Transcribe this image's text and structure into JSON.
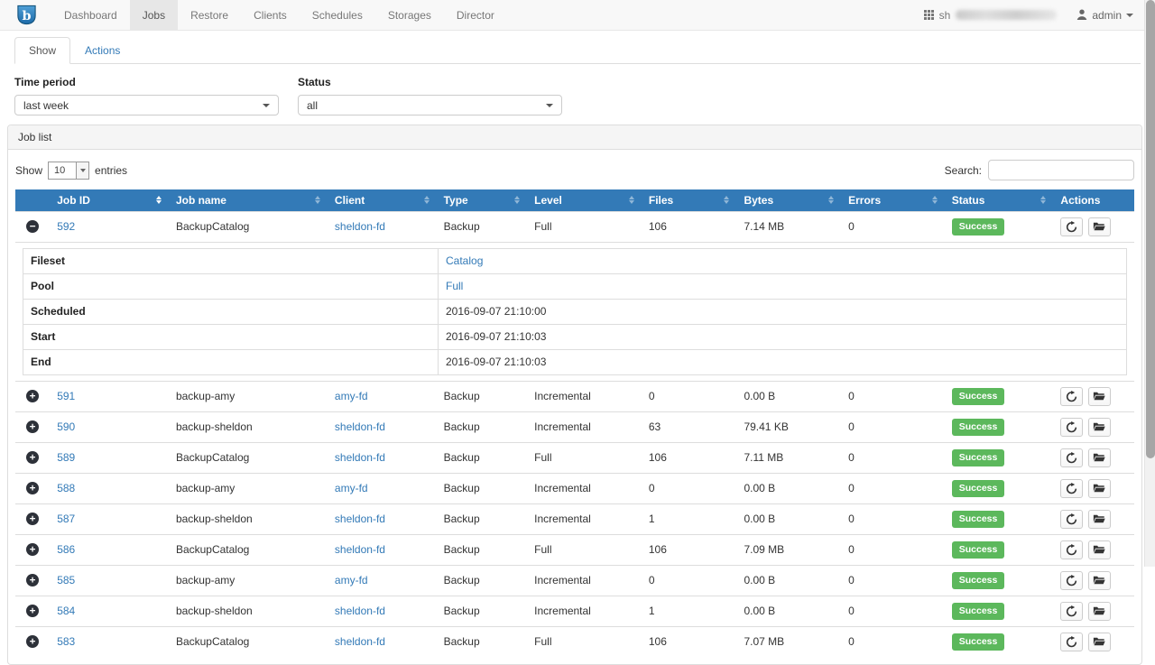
{
  "navbar": {
    "brand": "Bareos",
    "items": [
      {
        "label": "Dashboard",
        "active": false
      },
      {
        "label": "Jobs",
        "active": true
      },
      {
        "label": "Restore",
        "active": false
      },
      {
        "label": "Clients",
        "active": false
      },
      {
        "label": "Schedules",
        "active": false
      },
      {
        "label": "Storages",
        "active": false
      },
      {
        "label": "Director",
        "active": false
      }
    ],
    "host_prefix": "sh",
    "user_label": "admin"
  },
  "tabs": {
    "show": "Show",
    "actions": "Actions"
  },
  "filters": {
    "time_period_label": "Time period",
    "time_period_value": "last week",
    "status_label": "Status",
    "status_value": "all"
  },
  "job_list": {
    "panel_title": "Job list",
    "show_label": "Show",
    "entries_per_page": "10",
    "entries_label": "entries",
    "search_label": "Search:",
    "search_value": ""
  },
  "table": {
    "columns": [
      "Job ID",
      "Job name",
      "Client",
      "Type",
      "Level",
      "Files",
      "Bytes",
      "Errors",
      "Status",
      "Actions"
    ],
    "sorted_column": "Job ID",
    "rows": [
      {
        "id": "592",
        "name": "BackupCatalog",
        "client": "sheldon-fd",
        "type": "Backup",
        "level": "Full",
        "files": "106",
        "bytes": "7.14 MB",
        "errors": "0",
        "status": "Success",
        "expanded": true
      },
      {
        "id": "591",
        "name": "backup-amy",
        "client": "amy-fd",
        "type": "Backup",
        "level": "Incremental",
        "files": "0",
        "bytes": "0.00 B",
        "errors": "0",
        "status": "Success",
        "expanded": false
      },
      {
        "id": "590",
        "name": "backup-sheldon",
        "client": "sheldon-fd",
        "type": "Backup",
        "level": "Incremental",
        "files": "63",
        "bytes": "79.41 KB",
        "errors": "0",
        "status": "Success",
        "expanded": false
      },
      {
        "id": "589",
        "name": "BackupCatalog",
        "client": "sheldon-fd",
        "type": "Backup",
        "level": "Full",
        "files": "106",
        "bytes": "7.11 MB",
        "errors": "0",
        "status": "Success",
        "expanded": false
      },
      {
        "id": "588",
        "name": "backup-amy",
        "client": "amy-fd",
        "type": "Backup",
        "level": "Incremental",
        "files": "0",
        "bytes": "0.00 B",
        "errors": "0",
        "status": "Success",
        "expanded": false
      },
      {
        "id": "587",
        "name": "backup-sheldon",
        "client": "sheldon-fd",
        "type": "Backup",
        "level": "Incremental",
        "files": "1",
        "bytes": "0.00 B",
        "errors": "0",
        "status": "Success",
        "expanded": false
      },
      {
        "id": "586",
        "name": "BackupCatalog",
        "client": "sheldon-fd",
        "type": "Backup",
        "level": "Full",
        "files": "106",
        "bytes": "7.09 MB",
        "errors": "0",
        "status": "Success",
        "expanded": false
      },
      {
        "id": "585",
        "name": "backup-amy",
        "client": "amy-fd",
        "type": "Backup",
        "level": "Incremental",
        "files": "0",
        "bytes": "0.00 B",
        "errors": "0",
        "status": "Success",
        "expanded": false
      },
      {
        "id": "584",
        "name": "backup-sheldon",
        "client": "sheldon-fd",
        "type": "Backup",
        "level": "Incremental",
        "files": "1",
        "bytes": "0.00 B",
        "errors": "0",
        "status": "Success",
        "expanded": false
      },
      {
        "id": "583",
        "name": "BackupCatalog",
        "client": "sheldon-fd",
        "type": "Backup",
        "level": "Full",
        "files": "106",
        "bytes": "7.07 MB",
        "errors": "0",
        "status": "Success",
        "expanded": false
      }
    ],
    "detail_fields": [
      {
        "label": "Fileset",
        "value": "Catalog",
        "link": true
      },
      {
        "label": "Pool",
        "value": "Full",
        "link": true
      },
      {
        "label": "Scheduled",
        "value": "2016-09-07 21:10:00",
        "link": false
      },
      {
        "label": "Start",
        "value": "2016-09-07 21:10:03",
        "link": false
      },
      {
        "label": "End",
        "value": "2016-09-07 21:10:03",
        "link": false
      }
    ]
  },
  "colors": {
    "accent": "#337ab7",
    "table_header_bg": "#337ab7",
    "success_badge": "#5cb85c"
  }
}
